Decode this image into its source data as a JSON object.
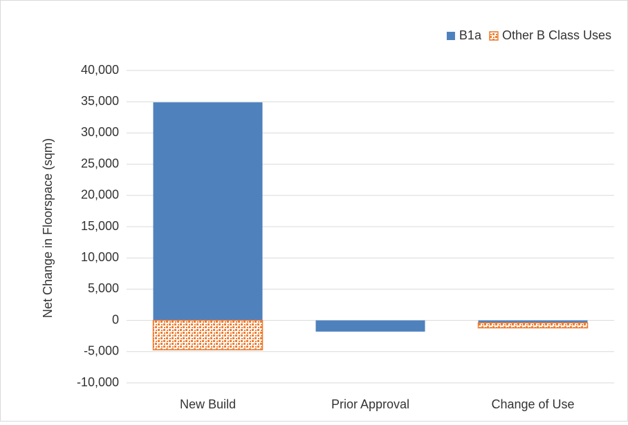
{
  "chart_data": {
    "type": "stacked_bar",
    "y_label": "Net Change in Floorspace (sqm)",
    "categories": [
      "New Build",
      "Prior Approval",
      "Change of Use"
    ],
    "series": [
      {
        "name": "B1a",
        "color": "#4f81bd",
        "pattern": false,
        "values": [
          34900,
          -1800,
          -400
        ]
      },
      {
        "name": "Other B Class Uses",
        "color": "#ed7d31",
        "pattern": true,
        "values": [
          -4700,
          0,
          -800
        ]
      }
    ],
    "ylim": [
      -10000,
      40000
    ],
    "yticks": [
      {
        "value": -10000,
        "label": "-10,000"
      },
      {
        "value": -5000,
        "label": "-5,000"
      },
      0,
      {
        "value": 5000,
        "label": "5,000"
      },
      {
        "value": 10000,
        "label": "10,000"
      },
      {
        "value": 15000,
        "label": "15,000"
      },
      {
        "value": 20000,
        "label": "20,000"
      },
      {
        "value": 25000,
        "label": "25,000"
      },
      {
        "value": 30000,
        "label": "30,000"
      },
      {
        "value": 35000,
        "label": "35,000"
      },
      {
        "value": 40000,
        "label": "40,000"
      }
    ],
    "grid": true,
    "legend": "top-right"
  }
}
